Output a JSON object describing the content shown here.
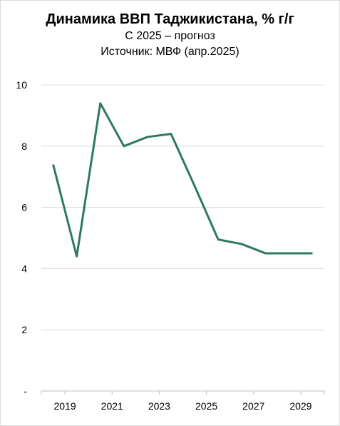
{
  "chart_data": {
    "type": "line",
    "title": "Динамика ВВП Таджикистана, % г/г",
    "subtitles": [
      "С 2025 – прогноз",
      "Источник: МВФ (апр.2025)"
    ],
    "xlabel": "",
    "ylabel": "",
    "x": [
      2019,
      2020,
      2021,
      2022,
      2023,
      2024,
      2025,
      2026,
      2027,
      2028,
      2029,
      2030
    ],
    "xlim": [
      2018.5,
      2030.5
    ],
    "x_ticks": [
      "2019",
      "2021",
      "2023",
      "2025",
      "2027",
      "2029"
    ],
    "y_ticks": [
      "-",
      "2",
      "4",
      "6",
      "8",
      "10"
    ],
    "ylim": [
      0,
      10
    ],
    "grid": true,
    "legend": "none",
    "series": [
      {
        "values": [
          7.4,
          4.4,
          9.4,
          8.0,
          8.3,
          8.4,
          6.7,
          4.95,
          4.8,
          4.5,
          4.5,
          4.5
        ],
        "color": "#2d7a5c"
      }
    ]
  }
}
